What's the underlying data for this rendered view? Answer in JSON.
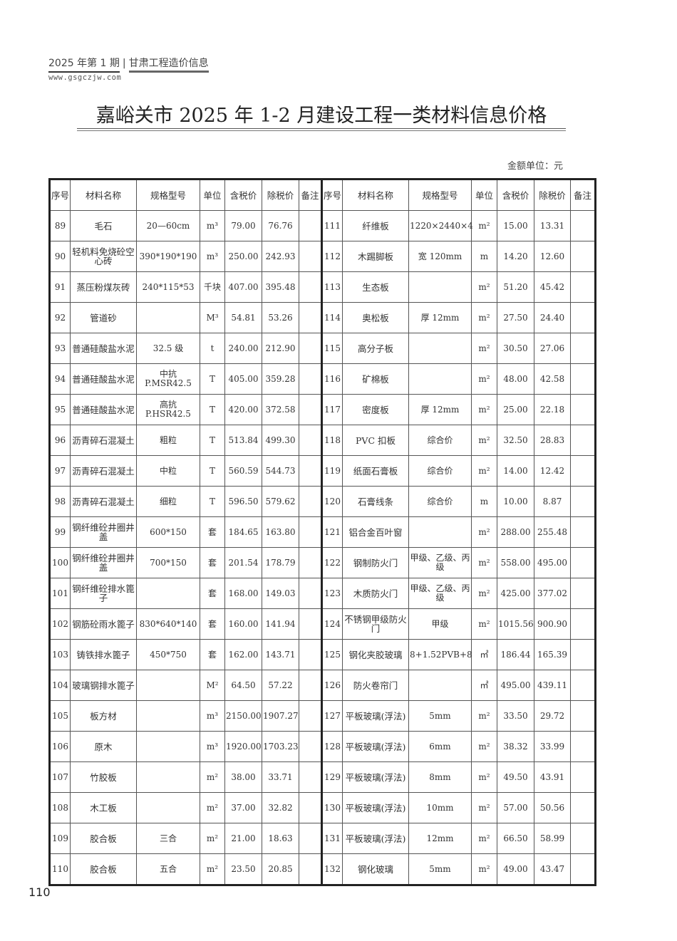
{
  "header": {
    "issue": "2025 年第 1 期",
    "separator": "|",
    "magazine": "甘肃工程造价信息",
    "url": "www.gsgczjw.com"
  },
  "title": "嘉峪关市 2025 年 1-2 月建设工程一类材料信息价格",
  "unit_note": "金额单位：元",
  "columns": [
    "序号",
    "材料名称",
    "规格型号",
    "单位",
    "含税价",
    "除税价",
    "备注"
  ],
  "left_rows": [
    {
      "no": "89",
      "name": "毛石",
      "spec": "20—60cm",
      "unit": "m³",
      "tax": "79.00",
      "notax": "76.76",
      "note": ""
    },
    {
      "no": "90",
      "name": "轻机料免烧砼空心砖",
      "spec": "390*190*190",
      "unit": "m³",
      "tax": "250.00",
      "notax": "242.93",
      "note": ""
    },
    {
      "no": "91",
      "name": "蒸压粉煤灰砖",
      "spec": "240*115*53",
      "unit": "千块",
      "tax": "407.00",
      "notax": "395.48",
      "note": ""
    },
    {
      "no": "92",
      "name": "管道砂",
      "spec": "",
      "unit": "M³",
      "tax": "54.81",
      "notax": "53.26",
      "note": ""
    },
    {
      "no": "93",
      "name": "普通硅酸盐水泥",
      "spec": "32.5 级",
      "unit": "t",
      "tax": "240.00",
      "notax": "212.90",
      "note": ""
    },
    {
      "no": "94",
      "name": "普通硅酸盐水泥",
      "spec": "中抗 P.MSR42.5",
      "unit": "T",
      "tax": "405.00",
      "notax": "359.28",
      "note": ""
    },
    {
      "no": "95",
      "name": "普通硅酸盐水泥",
      "spec": "高抗 P.HSR42.5",
      "unit": "T",
      "tax": "420.00",
      "notax": "372.58",
      "note": ""
    },
    {
      "no": "96",
      "name": "沥青碎石混凝土",
      "spec": "粗粒",
      "unit": "T",
      "tax": "513.84",
      "notax": "499.30",
      "note": ""
    },
    {
      "no": "97",
      "name": "沥青碎石混凝土",
      "spec": "中粒",
      "unit": "T",
      "tax": "560.59",
      "notax": "544.73",
      "note": ""
    },
    {
      "no": "98",
      "name": "沥青碎石混凝土",
      "spec": "细粒",
      "unit": "T",
      "tax": "596.50",
      "notax": "579.62",
      "note": ""
    },
    {
      "no": "99",
      "name": "钢纤维砼井圈井盖",
      "spec": "600*150",
      "unit": "套",
      "tax": "184.65",
      "notax": "163.80",
      "note": ""
    },
    {
      "no": "100",
      "name": "钢纤维砼井圈井盖",
      "spec": "700*150",
      "unit": "套",
      "tax": "201.54",
      "notax": "178.79",
      "note": ""
    },
    {
      "no": "101",
      "name": "钢纤维砼排水篦子",
      "spec": "",
      "unit": "套",
      "tax": "168.00",
      "notax": "149.03",
      "note": ""
    },
    {
      "no": "102",
      "name": "钢筋砼雨水篦子",
      "spec": "830*640*140",
      "unit": "套",
      "tax": "160.00",
      "notax": "141.94",
      "note": ""
    },
    {
      "no": "103",
      "name": "铸铁排水篦子",
      "spec": "450*750",
      "unit": "套",
      "tax": "162.00",
      "notax": "143.71",
      "note": ""
    },
    {
      "no": "104",
      "name": "玻璃钢排水篦子",
      "spec": "",
      "unit": "M²",
      "tax": "64.50",
      "notax": "57.22",
      "note": ""
    },
    {
      "no": "105",
      "name": "板方材",
      "spec": "",
      "unit": "m³",
      "tax": "2150.00",
      "notax": "1907.27",
      "note": ""
    },
    {
      "no": "106",
      "name": "原木",
      "spec": "",
      "unit": "m³",
      "tax": "1920.00",
      "notax": "1703.23",
      "note": ""
    },
    {
      "no": "107",
      "name": "竹胶板",
      "spec": "",
      "unit": "m²",
      "tax": "38.00",
      "notax": "33.71",
      "note": ""
    },
    {
      "no": "108",
      "name": "木工板",
      "spec": "",
      "unit": "m²",
      "tax": "37.00",
      "notax": "32.82",
      "note": ""
    },
    {
      "no": "109",
      "name": "胶合板",
      "spec": "三合",
      "unit": "m²",
      "tax": "21.00",
      "notax": "18.63",
      "note": ""
    },
    {
      "no": "110",
      "name": "胶合板",
      "spec": "五合",
      "unit": "m²",
      "tax": "23.50",
      "notax": "20.85",
      "note": ""
    }
  ],
  "right_rows": [
    {
      "no": "111",
      "name": "纤维板",
      "spec": "1220×2440×4",
      "unit": "m²",
      "tax": "15.00",
      "notax": "13.31",
      "note": ""
    },
    {
      "no": "112",
      "name": "木踢脚板",
      "spec": "宽  120mm",
      "unit": "m",
      "tax": "14.20",
      "notax": "12.60",
      "note": ""
    },
    {
      "no": "113",
      "name": "生态板",
      "spec": "",
      "unit": "m²",
      "tax": "51.20",
      "notax": "45.42",
      "note": ""
    },
    {
      "no": "114",
      "name": "奥松板",
      "spec": "厚 12mm",
      "unit": "m²",
      "tax": "27.50",
      "notax": "24.40",
      "note": ""
    },
    {
      "no": "115",
      "name": "高分子板",
      "spec": "",
      "unit": "m²",
      "tax": "30.50",
      "notax": "27.06",
      "note": ""
    },
    {
      "no": "116",
      "name": "矿棉板",
      "spec": "",
      "unit": "m²",
      "tax": "48.00",
      "notax": "42.58",
      "note": ""
    },
    {
      "no": "117",
      "name": "密度板",
      "spec": "厚 12mm",
      "unit": "m²",
      "tax": "25.00",
      "notax": "22.18",
      "note": ""
    },
    {
      "no": "118",
      "name": "PVC 扣板",
      "spec": "综合价",
      "unit": "m²",
      "tax": "32.50",
      "notax": "28.83",
      "note": ""
    },
    {
      "no": "119",
      "name": "纸面石膏板",
      "spec": "综合价",
      "unit": "m²",
      "tax": "14.00",
      "notax": "12.42",
      "note": ""
    },
    {
      "no": "120",
      "name": "石膏线条",
      "spec": "综合价",
      "unit": "m",
      "tax": "10.00",
      "notax": "8.87",
      "note": ""
    },
    {
      "no": "121",
      "name": "铝合金百叶窗",
      "spec": "",
      "unit": "m²",
      "tax": "288.00",
      "notax": "255.48",
      "note": ""
    },
    {
      "no": "122",
      "name": "钢制防火门",
      "spec": "甲级、乙级、丙级",
      "unit": "m²",
      "tax": "558.00",
      "notax": "495.00",
      "note": ""
    },
    {
      "no": "123",
      "name": "木质防火门",
      "spec": "甲级、乙级、丙级",
      "unit": "m²",
      "tax": "425.00",
      "notax": "377.02",
      "note": ""
    },
    {
      "no": "124",
      "name": "不锈钢甲级防火门",
      "spec": "甲级",
      "unit": "m²",
      "tax": "1015.56",
      "notax": "900.90",
      "note": ""
    },
    {
      "no": "125",
      "name": "钢化夹胶玻璃",
      "spec": "8+1.52PVB+8",
      "unit": "㎡",
      "tax": "186.44",
      "notax": "165.39",
      "note": ""
    },
    {
      "no": "126",
      "name": "防火卷帘门",
      "spec": "",
      "unit": "㎡",
      "tax": "495.00",
      "notax": "439.11",
      "note": ""
    },
    {
      "no": "127",
      "name": "平板玻璃(浮法)",
      "spec": "5mm",
      "unit": "m²",
      "tax": "33.50",
      "notax": "29.72",
      "note": ""
    },
    {
      "no": "128",
      "name": "平板玻璃(浮法)",
      "spec": "6mm",
      "unit": "m²",
      "tax": "38.32",
      "notax": "33.99",
      "note": ""
    },
    {
      "no": "129",
      "name": "平板玻璃(浮法)",
      "spec": "8mm",
      "unit": "m²",
      "tax": "49.50",
      "notax": "43.91",
      "note": ""
    },
    {
      "no": "130",
      "name": "平板玻璃(浮法)",
      "spec": "10mm",
      "unit": "m²",
      "tax": "57.00",
      "notax": "50.56",
      "note": ""
    },
    {
      "no": "131",
      "name": "平板玻璃(浮法)",
      "spec": "12mm",
      "unit": "m²",
      "tax": "66.50",
      "notax": "58.99",
      "note": ""
    },
    {
      "no": "132",
      "name": "钢化玻璃",
      "spec": "5mm",
      "unit": "m²",
      "tax": "49.00",
      "notax": "43.47",
      "note": ""
    }
  ],
  "page_number": "110"
}
